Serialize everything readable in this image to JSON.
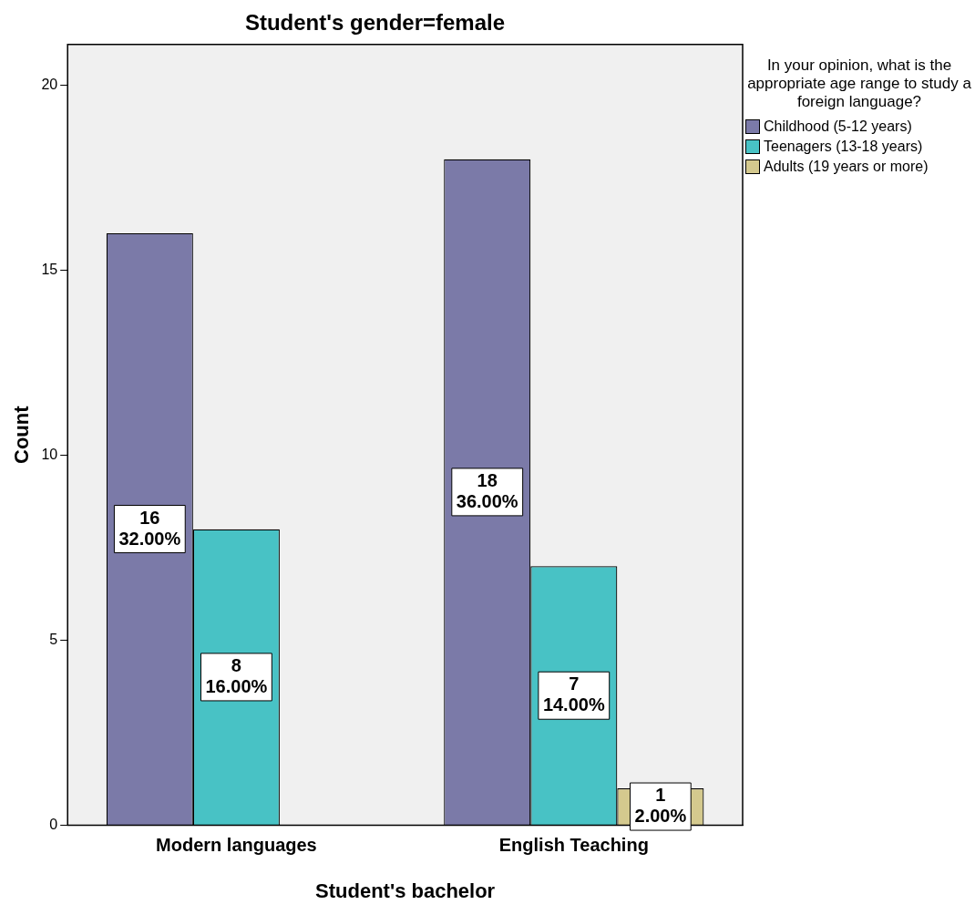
{
  "chart_data": {
    "type": "bar",
    "title": "Student's gender=female",
    "xlabel": "Student's bachelor",
    "ylabel": "Count",
    "categories": [
      "Modern languages",
      "English Teaching"
    ],
    "series": [
      {
        "name": "Childhood (5-12 years)",
        "color": "#7b7aa8",
        "values": [
          16,
          18
        ],
        "value_labels": [
          "16\n32.00%",
          "18\n36.00%"
        ]
      },
      {
        "name": "Teenagers (13-18 years)",
        "color": "#48c2c5",
        "values": [
          8,
          7
        ],
        "value_labels": [
          "8\n16.00%",
          "7\n14.00%"
        ]
      },
      {
        "name": "Adults (19 years or more)",
        "color": "#d4c98e",
        "values": [
          null,
          1
        ],
        "value_labels": [
          null,
          "1\n2.00%"
        ]
      }
    ],
    "legend_title": "In your opinion, what is the appropriate age range to study a foreign language?",
    "legend": "top right",
    "grid": false,
    "ylim": [
      0,
      21.1
    ],
    "yticks": [
      0,
      5,
      10,
      15,
      20
    ]
  }
}
